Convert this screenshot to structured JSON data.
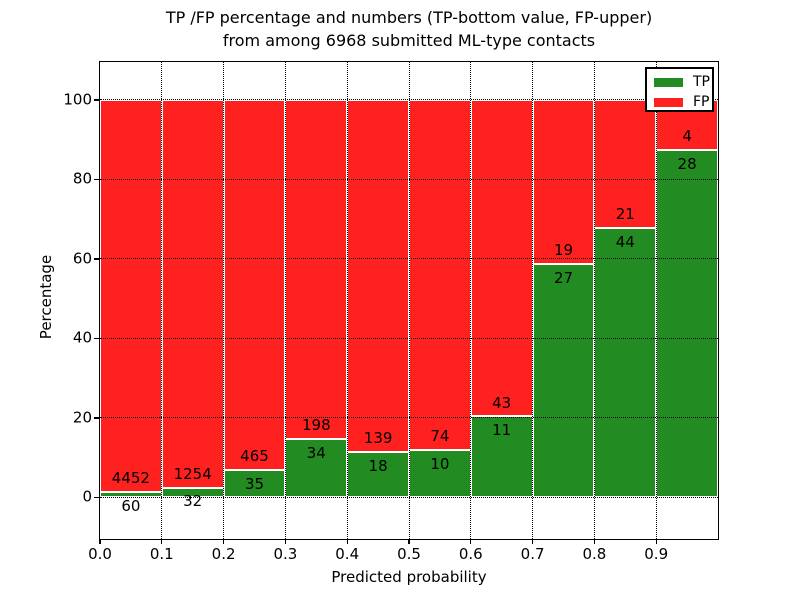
{
  "title": {
    "line1": "TP /FP percentage and numbers (TP-bottom value, FP-upper)",
    "line2": "from among 6968 submitted ML-type contacts"
  },
  "axes": {
    "xlabel": "Predicted probability",
    "ylabel": "Percentage",
    "xticks": [
      0.0,
      0.1,
      0.2,
      0.3,
      0.4,
      0.5,
      0.6,
      0.7,
      0.8,
      0.9
    ],
    "xtick_labels": [
      "0.0",
      "0.1",
      "0.2",
      "0.3",
      "0.4",
      "0.5",
      "0.6",
      "0.7",
      "0.8",
      "0.9"
    ],
    "yticks": [
      0,
      20,
      40,
      60,
      80,
      100
    ],
    "ytick_labels": [
      "0",
      "20",
      "40",
      "60",
      "80",
      "100"
    ],
    "xlim": [
      0.0,
      1.0
    ],
    "ylim": [
      -10.45,
      109.55
    ],
    "grid": true,
    "grid_style": "dotted",
    "grid_color": "#000000"
  },
  "legend": {
    "position": "upper right",
    "items": [
      {
        "label": "TP",
        "color": "#228b22"
      },
      {
        "label": "FP",
        "color": "#ff2020"
      }
    ]
  },
  "chart_data": {
    "type": "bar",
    "stacked": true,
    "normalization": "each bin scaled to 100 percent",
    "title": "TP /FP percentage and numbers (TP-bottom value, FP-upper) from among 6968 submitted ML-type contacts",
    "xlabel": "Predicted probability",
    "ylabel": "Percentage",
    "total_contacts": 6968,
    "bin_edges": [
      0.0,
      0.1,
      0.2,
      0.3,
      0.4,
      0.5,
      0.6,
      0.7,
      0.8,
      0.9,
      1.0
    ],
    "series": [
      {
        "name": "TP",
        "color": "#228b22",
        "counts": [
          60,
          32,
          35,
          34,
          18,
          10,
          11,
          27,
          44,
          28
        ]
      },
      {
        "name": "FP",
        "color": "#ff2020",
        "counts": [
          4452,
          1254,
          465,
          198,
          139,
          74,
          43,
          19,
          21,
          4
        ]
      }
    ],
    "tp_percent_per_bin": [
      1.33,
      2.49,
      7.0,
      14.66,
      11.46,
      11.9,
      20.37,
      58.7,
      67.69,
      87.5
    ],
    "bar_total_percent": 100,
    "bar_edge_color": "#ffffff",
    "label_rule": "TP count printed below the TP/FP boundary, FP count printed above it"
  }
}
